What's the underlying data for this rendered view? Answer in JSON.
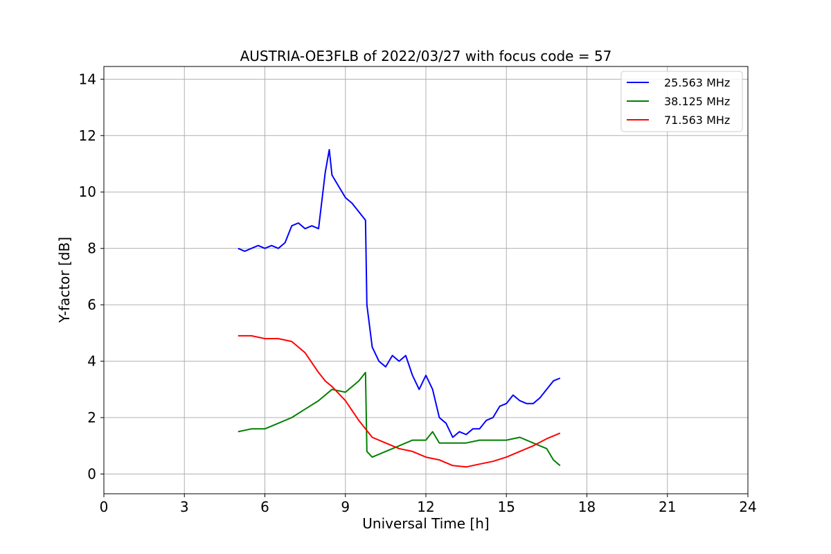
{
  "chart_data": {
    "type": "line",
    "title": "AUSTRIA-OE3FLB of 2022/03/27 with focus code = 57",
    "xlabel": "Universal Time [h]",
    "ylabel": "Y-factor [dB]",
    "xlim": [
      0,
      24
    ],
    "ylim": [
      -0.7,
      14.45
    ],
    "xticks": [
      0,
      3,
      6,
      9,
      12,
      15,
      18,
      21,
      24
    ],
    "yticks": [
      0,
      2,
      4,
      6,
      8,
      10,
      12,
      14
    ],
    "grid": true,
    "legend_position": "top-right",
    "series": [
      {
        "name": "25.563 MHz",
        "color": "#0000ff",
        "x": [
          5.0,
          5.25,
          5.5,
          5.75,
          6.0,
          6.25,
          6.5,
          6.75,
          7.0,
          7.25,
          7.5,
          7.75,
          8.0,
          8.25,
          8.4,
          8.5,
          8.75,
          9.0,
          9.25,
          9.5,
          9.75,
          9.8,
          10.0,
          10.25,
          10.5,
          10.75,
          11.0,
          11.25,
          11.5,
          11.75,
          12.0,
          12.25,
          12.5,
          12.75,
          13.0,
          13.25,
          13.5,
          13.75,
          14.0,
          14.25,
          14.5,
          14.75,
          15.0,
          15.25,
          15.5,
          15.75,
          16.0,
          16.25,
          16.5,
          16.75,
          17.0
        ],
        "y": [
          8.0,
          7.9,
          8.0,
          8.1,
          8.0,
          8.1,
          8.0,
          8.2,
          8.8,
          8.9,
          8.7,
          8.8,
          8.7,
          10.7,
          11.5,
          10.6,
          10.2,
          9.8,
          9.6,
          9.3,
          9.0,
          6.0,
          4.5,
          4.0,
          3.8,
          4.2,
          4.0,
          4.2,
          3.5,
          3.0,
          3.5,
          3.0,
          2.0,
          1.8,
          1.3,
          1.5,
          1.4,
          1.6,
          1.6,
          1.9,
          2.0,
          2.4,
          2.5,
          2.8,
          2.6,
          2.5,
          2.5,
          2.7,
          3.0,
          3.3,
          3.4
        ]
      },
      {
        "name": "38.125 MHz",
        "color": "#008000",
        "x": [
          5.0,
          5.5,
          6.0,
          6.5,
          7.0,
          7.5,
          8.0,
          8.5,
          9.0,
          9.5,
          9.75,
          9.8,
          10.0,
          10.5,
          11.0,
          11.5,
          12.0,
          12.25,
          12.5,
          13.0,
          13.5,
          14.0,
          14.5,
          15.0,
          15.5,
          16.0,
          16.5,
          16.75,
          17.0
        ],
        "y": [
          1.5,
          1.6,
          1.6,
          1.8,
          2.0,
          2.3,
          2.6,
          3.0,
          2.9,
          3.3,
          3.6,
          0.8,
          0.6,
          0.8,
          1.0,
          1.2,
          1.2,
          1.5,
          1.1,
          1.1,
          1.1,
          1.2,
          1.2,
          1.2,
          1.3,
          1.1,
          0.9,
          0.5,
          0.3
        ]
      },
      {
        "name": "71.563 MHz",
        "color": "#ff0000",
        "x": [
          5.0,
          5.5,
          6.0,
          6.5,
          7.0,
          7.5,
          8.0,
          8.25,
          8.5,
          9.0,
          9.5,
          9.75,
          10.0,
          10.5,
          11.0,
          11.5,
          12.0,
          12.5,
          13.0,
          13.5,
          14.0,
          14.5,
          15.0,
          15.5,
          16.0,
          16.5,
          17.0
        ],
        "y": [
          4.9,
          4.9,
          4.8,
          4.8,
          4.7,
          4.3,
          3.6,
          3.3,
          3.1,
          2.6,
          1.9,
          1.6,
          1.3,
          1.1,
          0.9,
          0.8,
          0.6,
          0.5,
          0.3,
          0.25,
          0.35,
          0.45,
          0.6,
          0.8,
          1.0,
          1.25,
          1.45
        ]
      }
    ]
  }
}
